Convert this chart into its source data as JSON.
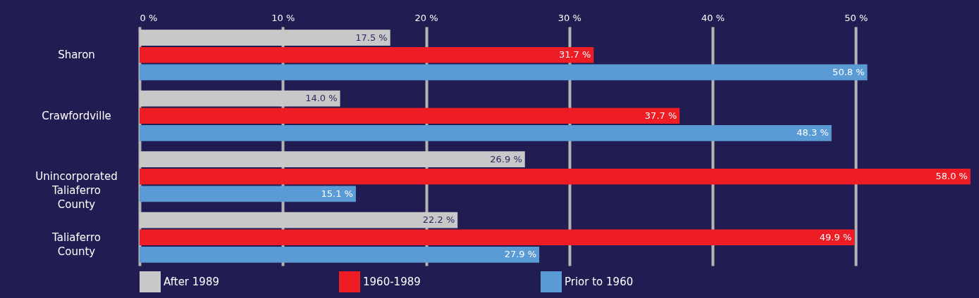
{
  "chart_data": {
    "type": "bar",
    "orientation": "horizontal",
    "categories": [
      "Sharon",
      "Crawfordville",
      "Unincorporated Taliaferro County",
      "Taliaferro County"
    ],
    "series": [
      {
        "name": "After 1989",
        "color": "#c8c8c8",
        "values": [
          17.5,
          14.0,
          26.9,
          22.2
        ],
        "value_labels": [
          "17.5 %",
          "14.0 %",
          "26.9 %",
          "22.2 %"
        ]
      },
      {
        "name": "1960-1989",
        "color": "#ee1c25",
        "values": [
          31.7,
          37.7,
          58.0,
          49.9
        ],
        "value_labels": [
          "31.7 %",
          "37.7 %",
          "58.0 %",
          "49.9 %"
        ]
      },
      {
        "name": "Prior to 1960",
        "color": "#5b9bd5",
        "values": [
          50.8,
          48.3,
          15.1,
          27.9
        ],
        "value_labels": [
          "50.8 %",
          "48.3 %",
          "15.1 %",
          "27.9 %"
        ]
      }
    ],
    "xlim": [
      0,
      58.3
    ],
    "xticks": [
      {
        "value": 0,
        "label": "0 %"
      },
      {
        "value": 10,
        "label": "10 %"
      },
      {
        "value": 20,
        "label": "20 %"
      },
      {
        "value": 30,
        "label": "30 %"
      },
      {
        "value": 40,
        "label": "40 %"
      },
      {
        "value": 50,
        "label": "50 %"
      }
    ],
    "grid": "x",
    "legend": "bottom"
  }
}
